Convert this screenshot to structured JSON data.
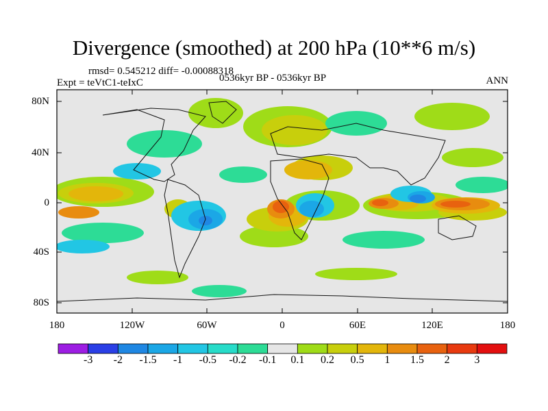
{
  "title": "Divergence (smoothed) at 200 hPa (10**6 m/s)",
  "stats": "rmsd= 0.545212 diff= -0.00088318",
  "experiment": "Expt = teVtC1-teIxC",
  "period": "0536kyr BP - 0536kyr BP",
  "season": "ANN",
  "map": {
    "lon_range": [
      -180,
      180
    ],
    "lat_range": [
      -90,
      90
    ],
    "y_ticks": [
      "80N",
      "40N",
      "0",
      "40S",
      "80S"
    ],
    "x_ticks": [
      "180",
      "120W",
      "60W",
      "0",
      "60E",
      "120E",
      "180"
    ]
  },
  "colorbar": {
    "labels": [
      "-3",
      "-2",
      "-1.5",
      "-1",
      "-0.5",
      "-0.2",
      "-0.1",
      "0.1",
      "0.2",
      "0.5",
      "1",
      "1.5",
      "2",
      "3"
    ],
    "colors": [
      "#9d1de3",
      "#2a3fe6",
      "#1f87e3",
      "#1ba7e6",
      "#22c6e4",
      "#27dcc9",
      "#2ddc96",
      "#e6e6e6",
      "#9fdc18",
      "#c8cf0c",
      "#e3b60b",
      "#e88c0f",
      "#e8620f",
      "#e83a0f",
      "#e30f0f"
    ]
  },
  "colors": {
    "frame": "#000000",
    "land_neutral": "#e6e6e6",
    "coastline": "#111111"
  }
}
